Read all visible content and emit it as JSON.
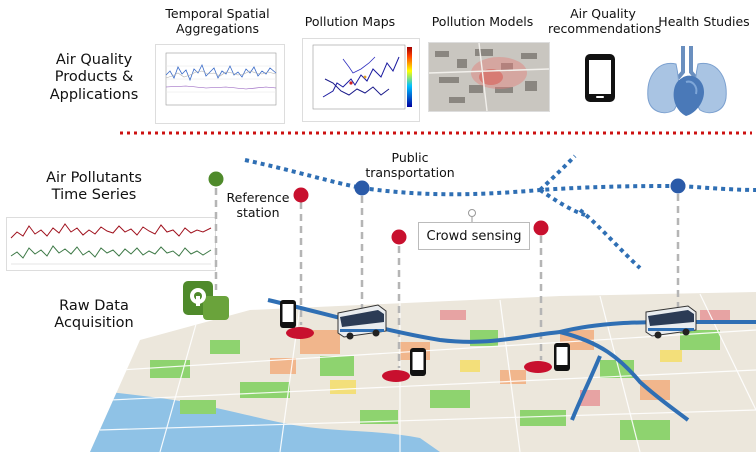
{
  "rows": {
    "products": "Air Quality\nProducts &\nApplications",
    "timeseries": "Air Pollutants\nTime Series",
    "raw": "Raw Data\nAcquisition"
  },
  "products": {
    "temporal": "Temporal Spatial\nAggregations",
    "maps": "Pollution Maps",
    "models": "Pollution Models",
    "recommendations": "Air Quality\nrecommendations",
    "health": "Health Studies"
  },
  "map_labels": {
    "reference": "Reference\nstation",
    "public": "Public\ntransportation",
    "crowd": "Crowd sensing"
  },
  "colors": {
    "dotted_separator": "#cc1111",
    "route_blue": "#2f6fb4",
    "sensor_red": "#c8102e",
    "sensor_green": "#4f8a2b",
    "bus_node": "#2a5aa8"
  },
  "icons": [
    "smartphone-icon",
    "lungs-heart-icon",
    "bus-icon",
    "reference-station-icon",
    "sensor-pin-icon"
  ]
}
